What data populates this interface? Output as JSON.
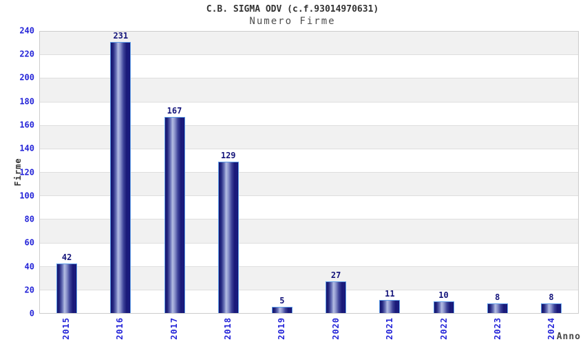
{
  "header": {
    "title": "C.B. SIGMA ODV (c.f.93014970631)",
    "subtitle": "Numero Firme"
  },
  "chart_data": {
    "type": "bar",
    "title": "C.B. SIGMA ODV (c.f.93014970631)",
    "subtitle": "Numero Firme",
    "categories": [
      "2015",
      "2016",
      "2017",
      "2018",
      "2019",
      "2020",
      "2021",
      "2022",
      "2023",
      "2024"
    ],
    "values": [
      42,
      231,
      167,
      129,
      5,
      27,
      11,
      10,
      8,
      8
    ],
    "xlabel": "Anno",
    "ylabel": "Firme",
    "ylim": [
      0,
      240
    ],
    "ytick_step": 20,
    "y_ticks": [
      0,
      20,
      40,
      60,
      80,
      100,
      120,
      140,
      160,
      180,
      200,
      220,
      240
    ],
    "grid": "alternating-horizontal-bands",
    "legend": "none",
    "bar_value_labels": true,
    "colors": {
      "bar_dark": "#14146e",
      "bar_highlight": "#b4bde3",
      "bar_border": "#5e9ce8",
      "axis_tick_label": "#2323d8",
      "value_label": "#14147a",
      "band_gray": "#f1f1f1",
      "band_white": "#ffffff",
      "plot_border": "#cccccc",
      "title_text": "#333333",
      "subtitle_text": "#4d4d4d",
      "axis_title_text": "#333333"
    }
  }
}
